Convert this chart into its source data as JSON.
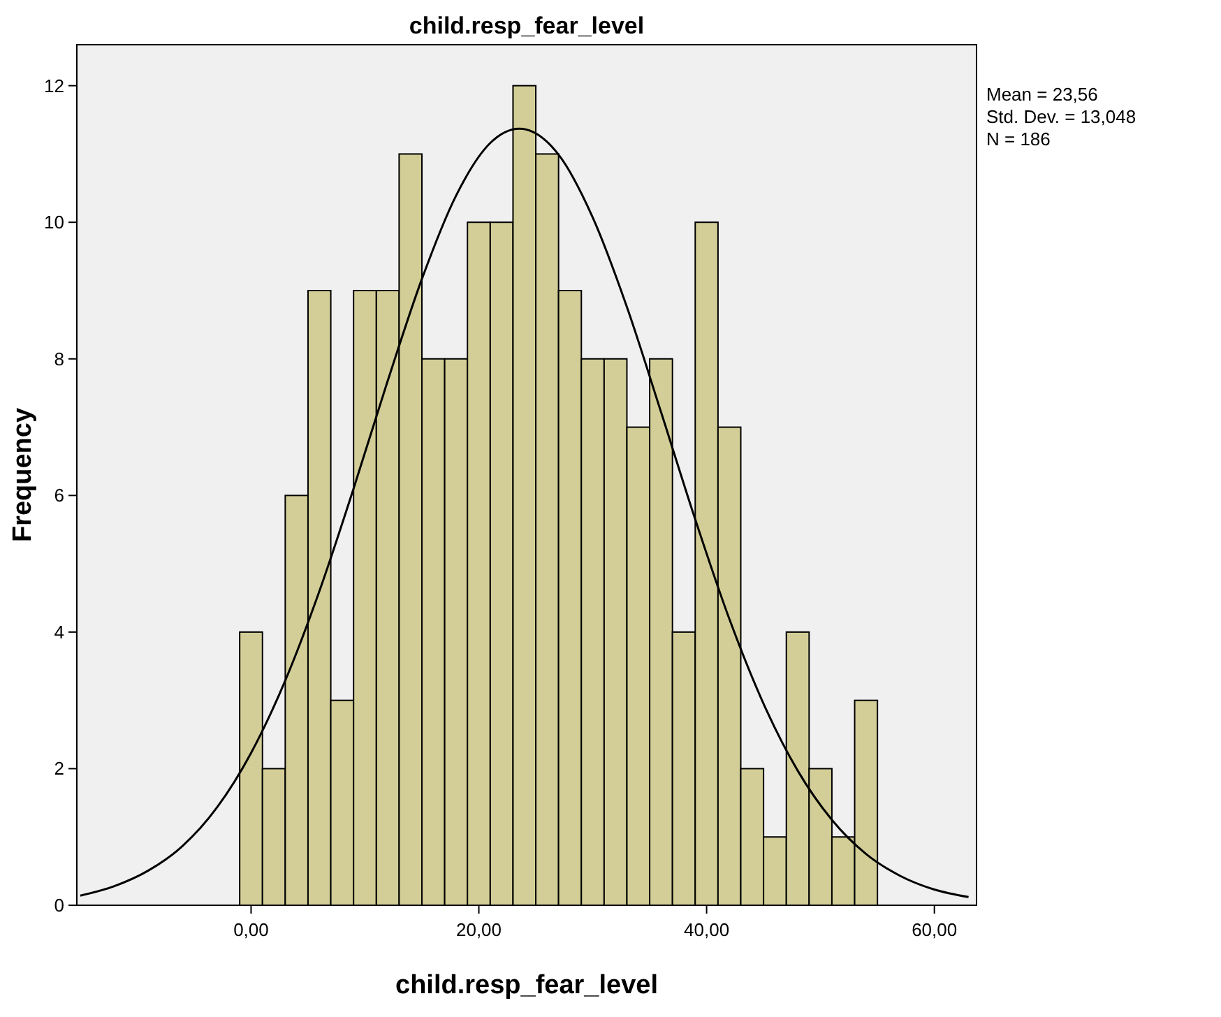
{
  "chart_data": {
    "type": "histogram",
    "title": "child.resp_fear_level",
    "xlabel": "child.resp_fear_level",
    "ylabel": "Frequency",
    "bins": [
      -1,
      1,
      3,
      5,
      7,
      9,
      11,
      13,
      15,
      17,
      19,
      21,
      23,
      25,
      27,
      29,
      31,
      33,
      35,
      37,
      39,
      41,
      43,
      45,
      47,
      49,
      51,
      53,
      55
    ],
    "values": [
      4,
      2,
      6,
      9,
      3,
      9,
      9,
      11,
      8,
      8,
      10,
      10,
      12,
      11,
      9,
      8,
      8,
      7,
      8,
      4,
      10,
      7,
      2,
      1,
      4,
      2,
      1,
      3
    ],
    "color": "#d3ce97",
    "series": [
      {
        "type": "line",
        "color": "#000000",
        "x": [
          -15,
          -12,
          -9,
          -6,
          -3,
          0,
          3,
          6,
          9,
          12,
          15,
          18,
          21,
          23.56,
          27,
          30,
          33,
          36,
          39,
          42,
          45,
          48,
          51,
          54,
          57,
          60,
          63
        ],
        "values": [
          0.14,
          0.28,
          0.51,
          0.87,
          1.43,
          2.23,
          3.29,
          4.6,
          6.1,
          7.68,
          9.17,
          10.39,
          11.16,
          11.37,
          10.99,
          10.07,
          8.76,
          7.22,
          5.65,
          4.19,
          2.95,
          1.97,
          1.25,
          0.75,
          0.43,
          0.23,
          0.12
        ]
      }
    ],
    "xlim": [
      -15.3,
      63.7
    ],
    "ylim": [
      0,
      12.6
    ],
    "xticks": [
      {
        "value": 0,
        "label": "0,00"
      },
      {
        "value": 20,
        "label": "20,00"
      },
      {
        "value": 40,
        "label": "40,00"
      },
      {
        "value": 60,
        "label": "60,00"
      }
    ],
    "yticks": [
      0,
      2,
      4,
      6,
      8,
      10,
      12
    ],
    "grid": false,
    "annotations": [
      "Mean = 23,56",
      "Std. Dev. = 13,048",
      "N = 186"
    ]
  }
}
